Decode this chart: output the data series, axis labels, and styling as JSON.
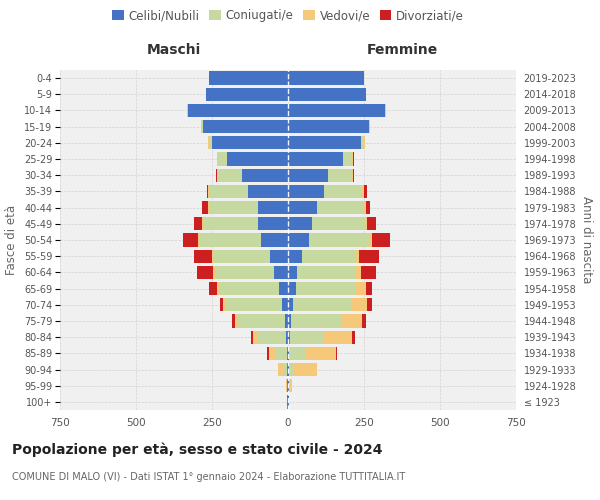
{
  "age_groups": [
    "100+",
    "95-99",
    "90-94",
    "85-89",
    "80-84",
    "75-79",
    "70-74",
    "65-69",
    "60-64",
    "55-59",
    "50-54",
    "45-49",
    "40-44",
    "35-39",
    "30-34",
    "25-29",
    "20-24",
    "15-19",
    "10-14",
    "5-9",
    "0-4"
  ],
  "birth_years": [
    "≤ 1923",
    "1924-1928",
    "1929-1933",
    "1934-1938",
    "1939-1943",
    "1944-1948",
    "1949-1953",
    "1954-1958",
    "1959-1963",
    "1964-1968",
    "1969-1973",
    "1974-1978",
    "1979-1983",
    "1984-1988",
    "1989-1993",
    "1994-1998",
    "1999-2003",
    "2004-2008",
    "2009-2013",
    "2014-2018",
    "2019-2023"
  ],
  "maschi": {
    "celibi": [
      2,
      2,
      2,
      3,
      5,
      10,
      20,
      30,
      45,
      60,
      90,
      100,
      100,
      130,
      150,
      200,
      250,
      280,
      330,
      270,
      260
    ],
    "coniugati": [
      0,
      2,
      10,
      40,
      95,
      155,
      185,
      195,
      195,
      185,
      200,
      180,
      160,
      130,
      80,
      30,
      10,
      5,
      2,
      0,
      0
    ],
    "vedovi": [
      0,
      2,
      20,
      20,
      15,
      10,
      10,
      10,
      8,
      5,
      5,
      3,
      2,
      2,
      2,
      2,
      2,
      0,
      0,
      0,
      0
    ],
    "divorziati": [
      0,
      0,
      0,
      5,
      8,
      10,
      10,
      25,
      50,
      60,
      50,
      25,
      20,
      5,
      5,
      3,
      0,
      0,
      0,
      0,
      0
    ]
  },
  "femmine": {
    "nubili": [
      2,
      2,
      2,
      2,
      5,
      10,
      15,
      25,
      30,
      45,
      70,
      80,
      95,
      120,
      130,
      180,
      240,
      265,
      320,
      255,
      250
    ],
    "coniugate": [
      0,
      2,
      15,
      55,
      110,
      165,
      195,
      195,
      190,
      175,
      195,
      175,
      155,
      125,
      80,
      30,
      10,
      5,
      2,
      0,
      0
    ],
    "vedove": [
      0,
      10,
      80,
      100,
      95,
      70,
      50,
      35,
      20,
      15,
      10,
      5,
      5,
      5,
      3,
      3,
      2,
      0,
      0,
      0,
      0
    ],
    "divorziate": [
      0,
      0,
      0,
      5,
      10,
      10,
      15,
      20,
      50,
      65,
      60,
      30,
      15,
      10,
      5,
      3,
      0,
      0,
      0,
      0,
      0
    ]
  },
  "colors": {
    "celibi": "#4472C4",
    "coniugati": "#C5D9A0",
    "vedovi": "#F5C87A",
    "divorziati": "#CC2020"
  },
  "legend_labels": [
    "Celibi/Nubili",
    "Coniugati/e",
    "Vedovi/e",
    "Divorziati/e"
  ],
  "title": "Popolazione per età, sesso e stato civile - 2024",
  "subtitle": "COMUNE DI MALO (VI) - Dati ISTAT 1° gennaio 2024 - Elaborazione TUTTITALIA.IT",
  "header_left": "Maschi",
  "header_right": "Femmine",
  "ylabel_left": "Fasce di età",
  "ylabel_right": "Anni di nascita",
  "xlim": 750,
  "bg_color": "#ffffff",
  "plot_bg": "#f0f0f0",
  "grid_color": "#cccccc"
}
